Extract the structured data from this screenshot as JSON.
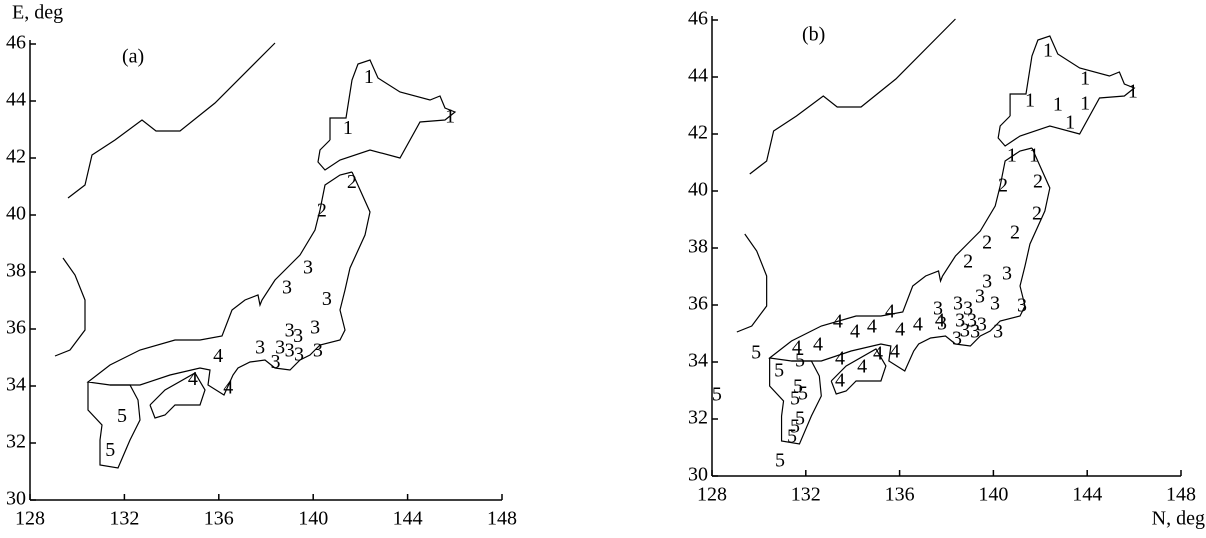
{
  "chart_data": [
    {
      "type": "scatter",
      "panel_label": "(a)",
      "ylabel": "E, deg",
      "xlim": [
        128,
        148
      ],
      "ylim": [
        30,
        46
      ],
      "xticks": [
        128,
        132,
        136,
        140,
        144,
        148
      ],
      "yticks": [
        30,
        32,
        34,
        36,
        38,
        40,
        42,
        44,
        46
      ],
      "x": [
        142.36,
        141.47,
        145.8,
        141.64,
        140.37,
        139.78,
        138.89,
        140.58,
        139.0,
        139.36,
        140.08,
        137.75,
        138.6,
        139.0,
        139.4,
        138.4,
        140.2,
        135.97,
        134.9,
        136.4,
        131.9,
        131.4
      ],
      "y": [
        44.8,
        43.0,
        43.4,
        41.1,
        40.1,
        38.1,
        37.4,
        37.0,
        35.9,
        35.7,
        36.0,
        35.3,
        35.3,
        35.2,
        35.05,
        34.8,
        35.2,
        35.0,
        34.2,
        33.9,
        32.9,
        31.7
      ],
      "labels": [
        "1",
        "1",
        "1",
        "2",
        "2",
        "3",
        "3",
        "3",
        "3",
        "3",
        "3",
        "3",
        "3",
        "3",
        "3",
        "3",
        "3",
        "4",
        "4",
        "4",
        "5",
        "5"
      ]
    },
    {
      "type": "scatter",
      "panel_label": "(b)",
      "xlabel": "N, deg",
      "xlim": [
        128,
        148
      ],
      "ylim": [
        30,
        46
      ],
      "xticks": [
        128,
        132,
        136,
        140,
        144,
        148
      ],
      "yticks": [
        30,
        32,
        34,
        36,
        38,
        40,
        42,
        44,
        46
      ],
      "x": [
        142.33,
        143.91,
        141.56,
        142.75,
        143.91,
        143.27,
        145.95,
        140.79,
        141.73,
        140.41,
        141.9,
        141.86,
        140.92,
        139.73,
        138.92,
        140.58,
        139.73,
        139.43,
        137.64,
        138.49,
        138.92,
        137.81,
        138.58,
        139.09,
        139.51,
        140.07,
        141.22,
        138.45,
        138.79,
        139.22,
        140.2,
        135.59,
        133.37,
        134.82,
        134.1,
        132.52,
        131.62,
        136.02,
        136.78,
        137.72,
        135.08,
        134.4,
        133.46,
        133.46,
        135.8,
        129.88,
        130.86,
        131.75,
        131.67,
        131.88,
        131.54,
        131.75,
        131.54,
        131.41,
        130.9,
        128.21
      ],
      "y": [
        44.88,
        43.89,
        43.12,
        42.98,
        43.02,
        42.35,
        43.44,
        41.19,
        41.19,
        40.14,
        40.28,
        39.16,
        38.49,
        38.14,
        37.47,
        37.05,
        36.77,
        36.25,
        35.82,
        36.0,
        35.82,
        35.3,
        35.4,
        35.4,
        35.26,
        36.0,
        35.93,
        34.77,
        35.05,
        35.02,
        35.02,
        35.72,
        35.37,
        35.19,
        35.02,
        34.56,
        34.46,
        35.09,
        35.26,
        35.4,
        34.25,
        33.79,
        34.07,
        33.3,
        34.32,
        34.28,
        33.65,
        34.0,
        33.09,
        32.84,
        32.67,
        31.96,
        31.68,
        31.33,
        30.49,
        32.81
      ],
      "labels": [
        "1",
        "1",
        "1",
        "1",
        "1",
        "1",
        "1",
        "1",
        "1",
        "2",
        "2",
        "2",
        "2",
        "2",
        "2",
        "3",
        "3",
        "3",
        "3",
        "3",
        "3",
        "3",
        "3",
        "3",
        "3",
        "3",
        "3",
        "3",
        "3",
        "3",
        "3",
        "4",
        "4",
        "4",
        "4",
        "4",
        "4",
        "4",
        "4",
        "4",
        "4",
        "4",
        "4",
        "4",
        "4",
        "5",
        "5",
        "5",
        "5",
        "5",
        "5",
        "5",
        "5",
        "5",
        "5",
        "5"
      ]
    }
  ]
}
